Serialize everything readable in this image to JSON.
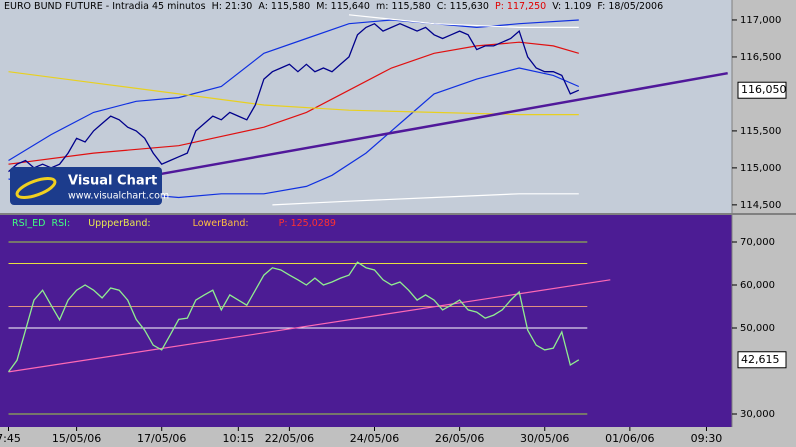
{
  "chart_data": [
    {
      "type": "line",
      "title": "EURO BUND FUTURE - Intradia 45 minutos",
      "info": "H: 21:30  A: 115,580  M: 115,640  m: 115,580  C: 115,630",
      "alert": "P: 117,250",
      "info2": "V: 1.109  F: 18/05/2006",
      "watermark": [
        "Visual Chart",
        "www.visualchart.com"
      ],
      "color": "#00008b",
      "values": [
        114.95,
        115.05,
        115.1,
        115.0,
        115.05,
        115.0,
        115.05,
        115.2,
        115.4,
        115.35,
        115.5,
        115.6,
        115.7,
        115.65,
        115.55,
        115.5,
        115.4,
        115.2,
        115.05,
        115.1,
        115.15,
        115.2,
        115.5,
        115.6,
        115.7,
        115.65,
        115.75,
        115.7,
        115.65,
        115.85,
        116.2,
        116.3,
        116.35,
        116.4,
        116.3,
        116.4,
        116.3,
        116.35,
        116.3,
        116.4,
        116.5,
        116.8,
        116.9,
        116.95,
        116.85,
        116.9,
        116.95,
        116.9,
        116.85,
        116.9,
        116.8,
        116.75,
        116.8,
        116.85,
        116.8,
        116.6,
        116.65,
        116.65,
        116.7,
        116.75,
        116.85,
        116.5,
        116.35,
        116.3,
        116.3,
        116.25,
        116.0,
        116.05
      ],
      "series": [
        {
          "color": "#1030e0",
          "x": [
            0,
            5,
            10,
            15,
            20,
            25,
            30,
            35,
            40,
            45,
            50,
            55,
            60,
            67
          ],
          "values": [
            115.1,
            115.45,
            115.75,
            115.9,
            115.95,
            116.1,
            116.55,
            116.75,
            116.95,
            117.0,
            116.95,
            116.9,
            116.95,
            117.0
          ]
        },
        {
          "color": "#1030e0",
          "x": [
            0,
            5,
            10,
            15,
            20,
            25,
            30,
            35,
            38,
            42,
            46,
            50,
            55,
            60,
            64,
            67
          ],
          "values": [
            114.85,
            114.75,
            114.7,
            114.65,
            114.6,
            114.65,
            114.65,
            114.75,
            114.9,
            115.2,
            115.6,
            116.0,
            116.2,
            116.35,
            116.25,
            116.1
          ]
        },
        {
          "color": "#e01010",
          "x": [
            0,
            10,
            20,
            30,
            35,
            40,
            45,
            50,
            55,
            60,
            64,
            67
          ],
          "values": [
            115.05,
            115.2,
            115.3,
            115.55,
            115.75,
            116.05,
            116.35,
            116.55,
            116.65,
            116.7,
            116.65,
            116.55
          ]
        },
        {
          "color": "#e8d020",
          "x": [
            0,
            10,
            20,
            30,
            40,
            50,
            60,
            67
          ],
          "values": [
            116.3,
            116.15,
            116.0,
            115.85,
            115.78,
            115.75,
            115.72,
            115.72
          ]
        },
        {
          "color": "#ffffff",
          "x": [
            31,
            40,
            50,
            60,
            67
          ],
          "values": [
            114.5,
            114.55,
            114.6,
            114.65,
            114.65
          ]
        },
        {
          "color": "#ffffff",
          "x": [
            40,
            50,
            60,
            67
          ],
          "values": [
            117.07,
            116.95,
            116.9,
            116.9
          ]
        },
        {
          "color": "#50189a",
          "x": [
            18,
            84.5
          ],
          "values": [
            114.92,
            116.28
          ]
        }
      ],
      "last_value": {
        "value": 116.05,
        "label": "116,050"
      },
      "xlim": [
        -1,
        85
      ],
      "ylim": [
        114.39,
        117.27
      ],
      "yticks": [
        {
          "value": 114.5,
          "label": "114,500"
        },
        {
          "value": 115,
          "label": "115,000"
        },
        {
          "value": 115.5,
          "label": "115,500"
        },
        {
          "value": 116.5,
          "label": "116,500"
        },
        {
          "value": 117,
          "label": "117,000"
        }
      ]
    },
    {
      "type": "line",
      "legend": [
        "RSI_ED  RSI:",
        "UppperBand:",
        "LowerBand:",
        "P: 125,0289"
      ],
      "color": "#90ee90",
      "values": [
        39.8,
        42.5,
        49.5,
        56.5,
        58.8,
        55.3,
        51.9,
        56.5,
        58.8,
        60,
        58.8,
        57,
        59.3,
        58.8,
        56.5,
        52,
        49.5,
        46,
        44.9,
        48.4,
        52,
        52.3,
        56.5,
        57.7,
        58.8,
        54.2,
        57.7,
        56.5,
        55.3,
        58.8,
        62.3,
        64,
        63.5,
        62.3,
        61.2,
        60,
        61.6,
        60,
        60.7,
        61.6,
        62.3,
        65.3,
        64,
        63.5,
        61.2,
        60,
        60.7,
        58.8,
        56.5,
        57.7,
        56.5,
        54.2,
        55.3,
        56.5,
        54.2,
        53.7,
        52.3,
        53,
        54.2,
        56.5,
        58.4,
        49.5,
        46,
        44.9,
        45.3,
        49.1,
        41.4,
        42.615
      ],
      "series": [
        {
          "color": "#ff69b4",
          "x": [
            0,
            70.7
          ],
          "values": [
            39.8,
            61.2
          ]
        }
      ],
      "levels": [
        {
          "value": 70,
          "color": "#a0d040"
        },
        {
          "value": 65,
          "color": "#e8e040"
        },
        {
          "value": 55,
          "color": "#e09080"
        },
        {
          "value": 50,
          "color": "#ffffff"
        },
        {
          "value": 30,
          "color": "#a0d040"
        }
      ],
      "last_value": {
        "value": 42.615,
        "label": "42,615"
      },
      "xlim": [
        -1,
        85
      ],
      "ylim": [
        26.98,
        76.28
      ],
      "yticks": [
        {
          "value": 30,
          "label": "30,000"
        },
        {
          "value": 50,
          "label": "50,000"
        },
        {
          "value": 60,
          "label": "60,000"
        },
        {
          "value": 70,
          "label": "70,000"
        }
      ],
      "xticks": [
        {
          "value": 0,
          "label": "7:45"
        },
        {
          "value": 8,
          "label": "15/05/06"
        },
        {
          "value": 18,
          "label": "17/05/06"
        },
        {
          "value": 27,
          "label": "10:15"
        },
        {
          "value": 33,
          "label": "22/05/06"
        },
        {
          "value": 43,
          "label": "24/05/06"
        },
        {
          "value": 53,
          "label": "26/05/06"
        },
        {
          "value": 63,
          "label": "30/05/06"
        },
        {
          "value": 73,
          "label": "01/06/06"
        },
        {
          "value": 82,
          "label": "09:30"
        }
      ]
    }
  ]
}
